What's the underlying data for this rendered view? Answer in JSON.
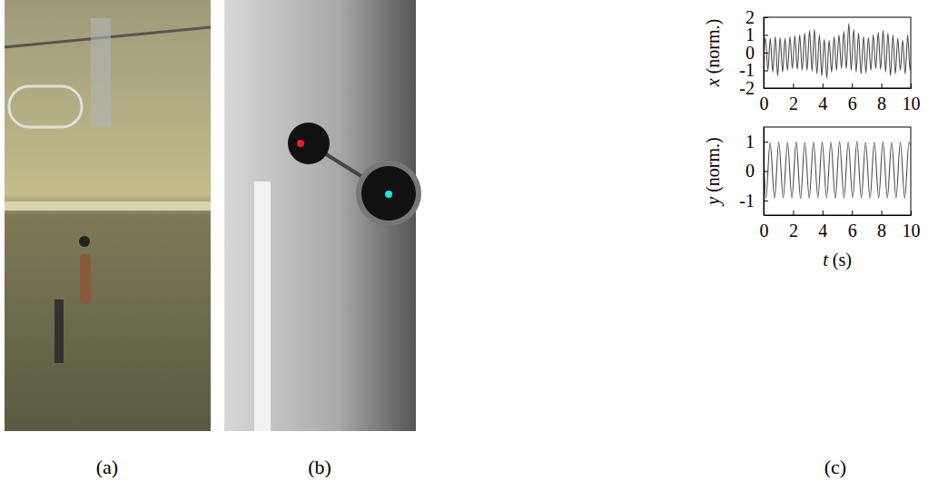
{
  "panel_labels": [
    "(a)",
    "(b)",
    "(c)"
  ],
  "chart_data": [
    {
      "type": "line",
      "y_label": "x (norm.)",
      "xlim": [
        0,
        10
      ],
      "xticks": [
        0,
        2,
        4,
        6,
        8,
        10
      ],
      "ylim": [
        -2,
        2
      ],
      "yticks": [
        -2,
        -1,
        0,
        1,
        2
      ],
      "color": "#4d4d4d",
      "x": [
        0,
        0.12,
        0.29,
        0.45,
        0.62,
        0.79,
        0.95,
        1.12,
        1.29,
        1.45,
        1.62,
        1.79,
        1.95,
        2.12,
        2.29,
        2.45,
        2.62,
        2.79,
        2.95,
        3.12,
        3.29,
        3.45,
        3.62,
        3.79,
        3.95,
        4.12,
        4.29,
        4.45,
        4.62,
        4.79,
        4.95,
        5.12,
        5.29,
        5.45,
        5.62,
        5.79,
        5.95,
        6.12,
        6.29,
        6.45,
        6.62,
        6.79,
        6.95,
        7.12,
        7.29,
        7.45,
        7.62,
        7.79,
        7.95,
        8.12,
        8.29,
        8.45,
        8.62,
        8.79,
        8.95,
        9.12,
        9.29,
        9.45,
        9.62,
        9.79,
        9.95,
        10
      ],
      "values": [
        -0.3,
        0.85,
        -1.0,
        0.8,
        -1.1,
        0.9,
        -1.3,
        0.85,
        -1.1,
        0.8,
        -1.0,
        0.9,
        -0.9,
        0.95,
        -0.95,
        1.0,
        -1.0,
        1.1,
        -1.0,
        1.25,
        -1.05,
        1.3,
        -1.2,
        1.0,
        -1.3,
        0.75,
        -1.45,
        0.7,
        -1.1,
        0.9,
        -1.0,
        1.0,
        -0.9,
        1.2,
        -0.9,
        1.65,
        -1.0,
        1.3,
        -1.1,
        1.1,
        -1.2,
        0.9,
        -1.15,
        0.85,
        -1.0,
        1.0,
        -0.9,
        1.15,
        -0.95,
        1.25,
        -1.1,
        1.1,
        -1.3,
        1.0,
        -1.2,
        0.8,
        -1.0,
        0.7,
        -1.2,
        1.0,
        -1.0,
        -0.6
      ]
    },
    {
      "type": "line",
      "x_label": "t (s)",
      "y_label": "y (norm.)",
      "xlim": [
        0,
        10
      ],
      "xticks": [
        0,
        2,
        4,
        6,
        8,
        10
      ],
      "ylim": [
        -1.5,
        1.5
      ],
      "yticks": [
        -1,
        0,
        1
      ],
      "color": "#4d4d4d",
      "x": [
        0,
        0.15,
        0.44,
        0.74,
        1.03,
        1.33,
        1.62,
        1.92,
        2.21,
        2.51,
        2.8,
        3.1,
        3.39,
        3.69,
        3.98,
        4.28,
        4.57,
        4.87,
        5.16,
        5.46,
        5.75,
        6.05,
        6.34,
        6.64,
        6.93,
        7.23,
        7.52,
        7.82,
        8.11,
        8.41,
        8.7,
        9.0,
        9.29,
        9.59,
        9.88,
        10
      ],
      "values": [
        0.7,
        -0.93,
        0.97,
        -0.92,
        0.99,
        -0.91,
        0.98,
        -0.92,
        1.0,
        -0.93,
        0.98,
        -0.92,
        0.99,
        -0.91,
        1.0,
        -0.92,
        0.98,
        -0.93,
        1.0,
        -0.92,
        0.99,
        -0.91,
        1.01,
        -0.92,
        0.98,
        -0.93,
        0.99,
        -0.92,
        1.0,
        -0.91,
        0.98,
        -0.92,
        0.99,
        -0.93,
        0.98,
        0.85
      ]
    }
  ]
}
